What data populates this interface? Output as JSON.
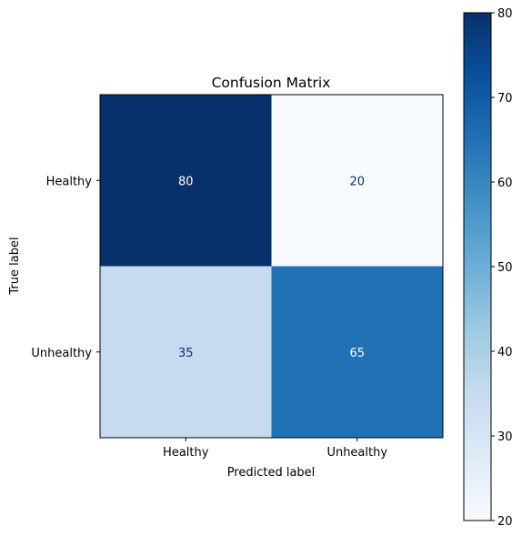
{
  "chart_data": {
    "type": "heatmap",
    "title": "Confusion Matrix",
    "xlabel": "Predicted label",
    "ylabel": "True label",
    "x_categories": [
      "Healthy",
      "Unhealthy"
    ],
    "y_categories": [
      "Healthy",
      "Unhealthy"
    ],
    "values": [
      [
        80,
        20
      ],
      [
        35,
        65
      ]
    ],
    "colormap": "Blues",
    "colorbar": {
      "range": [
        20,
        80
      ],
      "ticks": [
        20,
        30,
        40,
        50,
        60,
        70,
        80
      ],
      "tick_labels": [
        "20",
        "30",
        "40",
        "50",
        "60",
        "70",
        "80"
      ]
    },
    "colors": {
      "min": "#f7fbff",
      "max": "#08306b",
      "text_on_dark": "#ffffff",
      "text_on_light": "#08306b"
    }
  }
}
